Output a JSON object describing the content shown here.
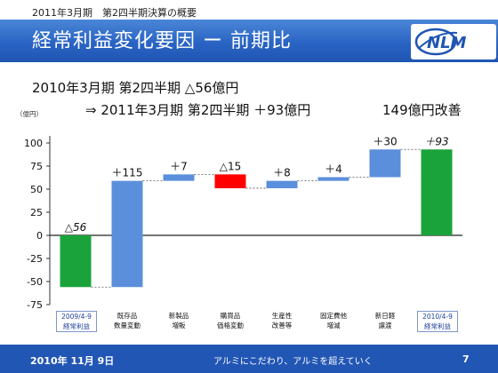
{
  "header": {
    "top_label": "2011年3月期　第2四半期決算の概要",
    "title": "経常利益変化要因 ー 前期比",
    "logo_text": "NLM"
  },
  "summary": {
    "line1": "2010年3月期 第2四半期 △56億円",
    "line2": "⇒ 2011年3月期 第2四半期 ＋93億円",
    "line2_right": "149億円改善"
  },
  "footer": {
    "date": "2010年 11月 9日",
    "slogan": "アルミにこだわり、アルミを超えていく",
    "page": "7"
  },
  "colors": {
    "increase": "#5b8fdb",
    "decrease": "#ff0000",
    "total": "#1aa33a",
    "title_bar": "#2a64c4",
    "footer_bar": "#2256b5"
  },
  "chart_data": {
    "type": "waterfall",
    "unit_label": "（億円）",
    "ylim": [
      -75,
      100
    ],
    "yticks": [
      100,
      75,
      50,
      25,
      0,
      -25,
      -50,
      -75
    ],
    "categories": [
      "2009/4-9\n経常利益",
      "既存品\n数量変動",
      "新製品\n増販",
      "購買品\n価格変動",
      "生産性\n改善等",
      "固定費他\n増減",
      "新日軽\n譲渡",
      "2010/4-9\n経常利益"
    ],
    "steps": [
      {
        "kind": "total",
        "start": 0,
        "end": -56,
        "label": "△56",
        "label_italic": true
      },
      {
        "kind": "increase",
        "start": -56,
        "end": 59,
        "label": "＋115",
        "label_italic": false
      },
      {
        "kind": "increase",
        "start": 59,
        "end": 66,
        "label": "＋7",
        "label_italic": false
      },
      {
        "kind": "decrease",
        "start": 66,
        "end": 51,
        "label": "△15",
        "label_italic": false
      },
      {
        "kind": "increase",
        "start": 51,
        "end": 59,
        "label": "＋8",
        "label_italic": false
      },
      {
        "kind": "increase",
        "start": 59,
        "end": 63,
        "label": "＋4",
        "label_italic": false
      },
      {
        "kind": "increase",
        "start": 63,
        "end": 93,
        "label": "＋30",
        "label_italic": false
      },
      {
        "kind": "total",
        "start": 0,
        "end": 93,
        "label": "＋93",
        "label_italic": true
      }
    ],
    "boxed_categories": [
      0,
      7
    ]
  }
}
